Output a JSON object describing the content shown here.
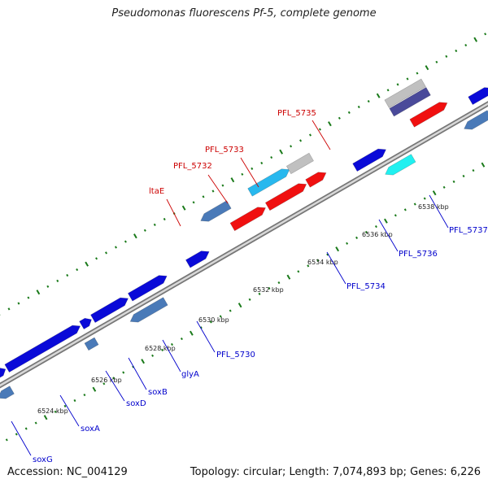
{
  "title": "Pseudomonas fluorescens Pf-5, complete genome",
  "footer": {
    "accession": "Accession: NC_004129",
    "summary": "Topology: circular; Length: 7,074,893 bp; Genes: 6,226"
  },
  "colors": {
    "blue": "#0a0ad8",
    "steel": "#4a7ab8",
    "sky": "#28b8ee",
    "cyan": "#20f0f0",
    "red": "#f01010",
    "gray": "#c0c0c0",
    "navy": "#4a4a9a",
    "tick": "#1a7a1a",
    "labelRed": "#cc0000",
    "labelBlue": "#0000cc"
  },
  "kbp_labels": [
    "6524 kbp",
    "6526 kbp",
    "6528 kbp",
    "6530 kbp",
    "6532 kbp",
    "6534 kbp",
    "6536 kbp",
    "6538 kbp"
  ],
  "gene_labels_outer": [
    "ltaE",
    "PFL_5732",
    "PFL_5733",
    "PFL_5735"
  ],
  "gene_labels_inner": [
    "soxG",
    "soxA",
    "soxD",
    "soxB",
    "glyA",
    "PFL_5730",
    "PFL_5734",
    "PFL_5736",
    "PFL_5737"
  ]
}
